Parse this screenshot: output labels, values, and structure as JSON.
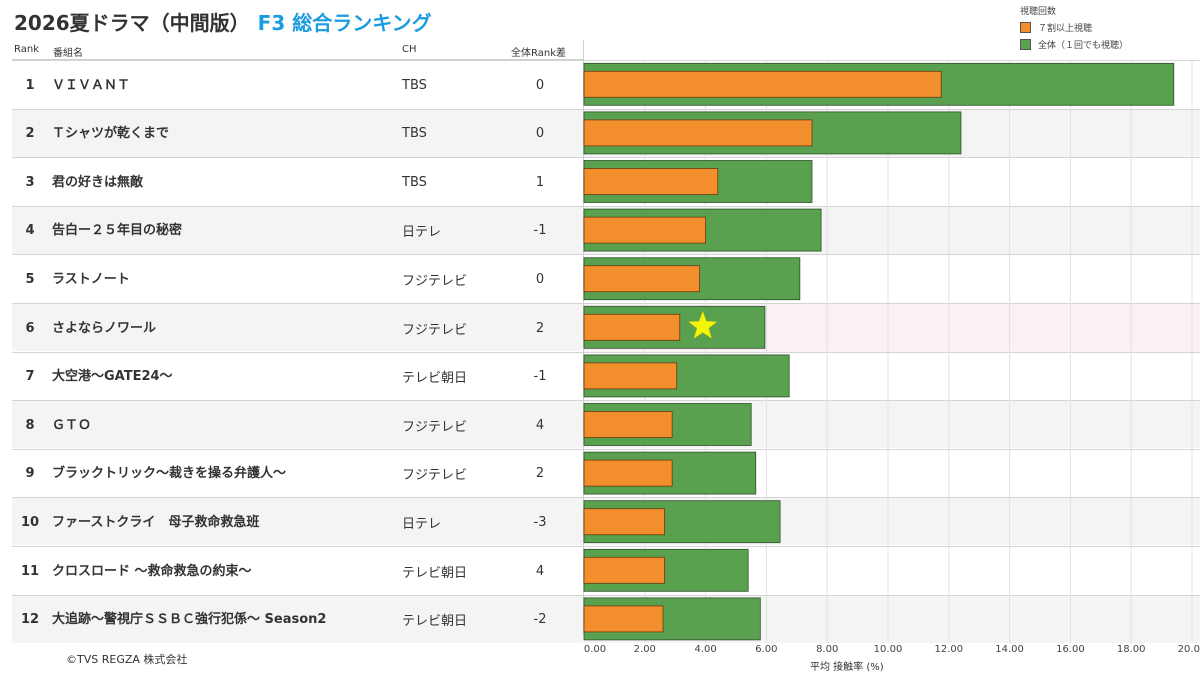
{
  "header": {
    "title_main": "2026夏ドラマ（中間版）",
    "title_sub": "F3 総合ランキング",
    "col_rank": "Rank",
    "col_name": "番組名",
    "col_ch": "CH",
    "col_diff": "全体Rank差"
  },
  "legend": {
    "title": "視聴回数",
    "items": [
      {
        "label": "７割以上視聴",
        "color": "#f28e2b"
      },
      {
        "label": "全体（１回でも視聴）",
        "color": "#59a14f"
      }
    ]
  },
  "footer": {
    "copyright": "©TVS REGZA 株式会社"
  },
  "rows": [
    {
      "rank": "1",
      "name": "ＶＩＶＡＮＴ",
      "ch": "TBS",
      "diff": "0"
    },
    {
      "rank": "2",
      "name": "Ｔシャツが乾くまで",
      "ch": "TBS",
      "diff": "0"
    },
    {
      "rank": "3",
      "name": "君の好きは無敵",
      "ch": "TBS",
      "diff": "1"
    },
    {
      "rank": "4",
      "name": "告白ー２５年目の秘密",
      "ch": "日テレ",
      "diff": "-1"
    },
    {
      "rank": "5",
      "name": "ラストノート",
      "ch": "フジテレビ",
      "diff": "0"
    },
    {
      "rank": "6",
      "name": "さよならノワール",
      "ch": "フジテレビ",
      "diff": "2"
    },
    {
      "rank": "7",
      "name": "大空港～GATE24～",
      "ch": "テレビ朝日",
      "diff": "-1"
    },
    {
      "rank": "8",
      "name": "ＧＴＯ",
      "ch": "フジテレビ",
      "diff": "4"
    },
    {
      "rank": "9",
      "name": "ブラックトリック～裁きを操る弁護人～",
      "ch": "フジテレビ",
      "diff": "2"
    },
    {
      "rank": "10",
      "name": "ファーストクライ　母子救命救急班",
      "ch": "日テレ",
      "diff": "-3"
    },
    {
      "rank": "11",
      "name": "クロスロード ～救命救急の約束～",
      "ch": "テレビ朝日",
      "diff": "4"
    },
    {
      "rank": "12",
      "name": "大追跡～警視庁ＳＳＢＣ強行犯係～ Season2",
      "ch": "テレビ朝日",
      "diff": "-2"
    }
  ],
  "chart_data": {
    "type": "bar",
    "orientation": "horizontal",
    "xlabel": "平均 接触率 (%)",
    "xlim": [
      0,
      20
    ],
    "xticks": [
      "0.00",
      "2.00",
      "4.00",
      "6.00",
      "8.00",
      "10.00",
      "12.00",
      "14.00",
      "16.00",
      "18.00",
      "20.00"
    ],
    "grid": true,
    "legend_position": "top-right",
    "categories": [
      "ＶＩＶＡＮＴ",
      "Ｔシャツが乾くまで",
      "君の好きは無敵",
      "告白ー２５年目の秘密",
      "ラストノート",
      "さよならノワール",
      "大空港～GATE24～",
      "ＧＴＯ",
      "ブラックトリック～裁きを操る弁護人～",
      "ファーストクライ　母子救命救急班",
      "クロスロード ～救命救急の約束～",
      "大追跡～警視庁ＳＳＢＣ強行犯係～ Season2"
    ],
    "series": [
      {
        "name": "全体（１回でも視聴）",
        "color": "#59a14f",
        "values": [
          19.4,
          12.4,
          7.5,
          7.8,
          7.1,
          5.95,
          6.75,
          5.5,
          5.65,
          6.45,
          5.4,
          5.8
        ]
      },
      {
        "name": "７割以上視聴",
        "color": "#f28e2b",
        "values": [
          11.75,
          7.5,
          4.4,
          4.0,
          3.8,
          3.15,
          3.05,
          2.9,
          2.9,
          2.65,
          2.65,
          2.6
        ]
      }
    ],
    "annotations": [
      {
        "type": "star",
        "category": "さよならノワール",
        "color": "#f5f50a"
      }
    ]
  }
}
